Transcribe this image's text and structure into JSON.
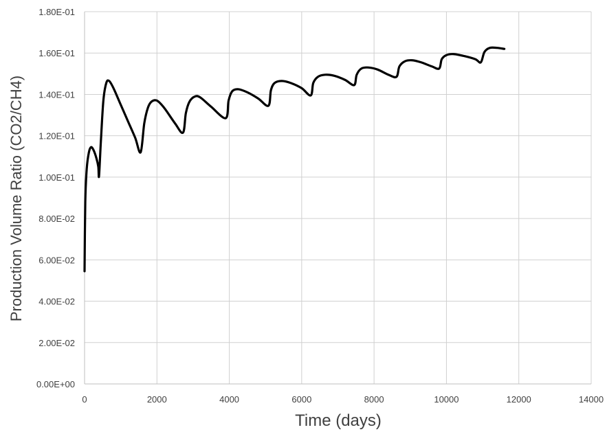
{
  "chart_data": {
    "type": "line",
    "title": "",
    "xlabel": "Time (days)",
    "ylabel": "Production Volume Ratio (CO2/CH4)",
    "xlim": [
      0,
      14000
    ],
    "ylim": [
      0,
      0.18
    ],
    "x_ticks": [
      "0",
      "2000",
      "4000",
      "6000",
      "8000",
      "10000",
      "12000",
      "14000"
    ],
    "y_ticks": [
      "0.00E+00",
      "2.00E-02",
      "4.00E-02",
      "6.00E-02",
      "8.00E-02",
      "1.00E-01",
      "1.20E-01",
      "1.40E-01",
      "1.60E-01",
      "1.80E-01"
    ],
    "grid": true,
    "series": [
      {
        "color": "#000000",
        "points": [
          [
            0,
            0.0545
          ],
          [
            20,
            0.088
          ],
          [
            60,
            0.104
          ],
          [
            120,
            0.112
          ],
          [
            180,
            0.1145
          ],
          [
            250,
            0.113
          ],
          [
            330,
            0.109
          ],
          [
            380,
            0.105
          ],
          [
            400,
            0.1005
          ],
          [
            450,
            0.117
          ],
          [
            520,
            0.137
          ],
          [
            600,
            0.1455
          ],
          [
            680,
            0.1465
          ],
          [
            800,
            0.143
          ],
          [
            1000,
            0.135
          ],
          [
            1200,
            0.127
          ],
          [
            1400,
            0.119
          ],
          [
            1550,
            0.112
          ],
          [
            1650,
            0.126
          ],
          [
            1750,
            0.1335
          ],
          [
            1850,
            0.1365
          ],
          [
            2000,
            0.137
          ],
          [
            2200,
            0.1335
          ],
          [
            2500,
            0.126
          ],
          [
            2720,
            0.1215
          ],
          [
            2800,
            0.131
          ],
          [
            2900,
            0.1365
          ],
          [
            3050,
            0.139
          ],
          [
            3200,
            0.1385
          ],
          [
            3500,
            0.134
          ],
          [
            3900,
            0.1285
          ],
          [
            3980,
            0.137
          ],
          [
            4080,
            0.1415
          ],
          [
            4250,
            0.1425
          ],
          [
            4500,
            0.141
          ],
          [
            4800,
            0.138
          ],
          [
            5080,
            0.1345
          ],
          [
            5150,
            0.142
          ],
          [
            5250,
            0.1455
          ],
          [
            5450,
            0.1465
          ],
          [
            5700,
            0.1455
          ],
          [
            6000,
            0.143
          ],
          [
            6250,
            0.1395
          ],
          [
            6320,
            0.1455
          ],
          [
            6450,
            0.1485
          ],
          [
            6650,
            0.1495
          ],
          [
            6900,
            0.149
          ],
          [
            7200,
            0.147
          ],
          [
            7450,
            0.1445
          ],
          [
            7520,
            0.1495
          ],
          [
            7650,
            0.1525
          ],
          [
            7850,
            0.153
          ],
          [
            8100,
            0.152
          ],
          [
            8400,
            0.1495
          ],
          [
            8620,
            0.1485
          ],
          [
            8700,
            0.1535
          ],
          [
            8850,
            0.156
          ],
          [
            9050,
            0.1565
          ],
          [
            9300,
            0.1555
          ],
          [
            9600,
            0.1535
          ],
          [
            9800,
            0.1525
          ],
          [
            9870,
            0.157
          ],
          [
            10000,
            0.159
          ],
          [
            10200,
            0.1595
          ],
          [
            10500,
            0.1585
          ],
          [
            10800,
            0.157
          ],
          [
            10950,
            0.1555
          ],
          [
            11050,
            0.1605
          ],
          [
            11200,
            0.1625
          ],
          [
            11400,
            0.1625
          ],
          [
            11600,
            0.162
          ]
        ]
      }
    ]
  }
}
